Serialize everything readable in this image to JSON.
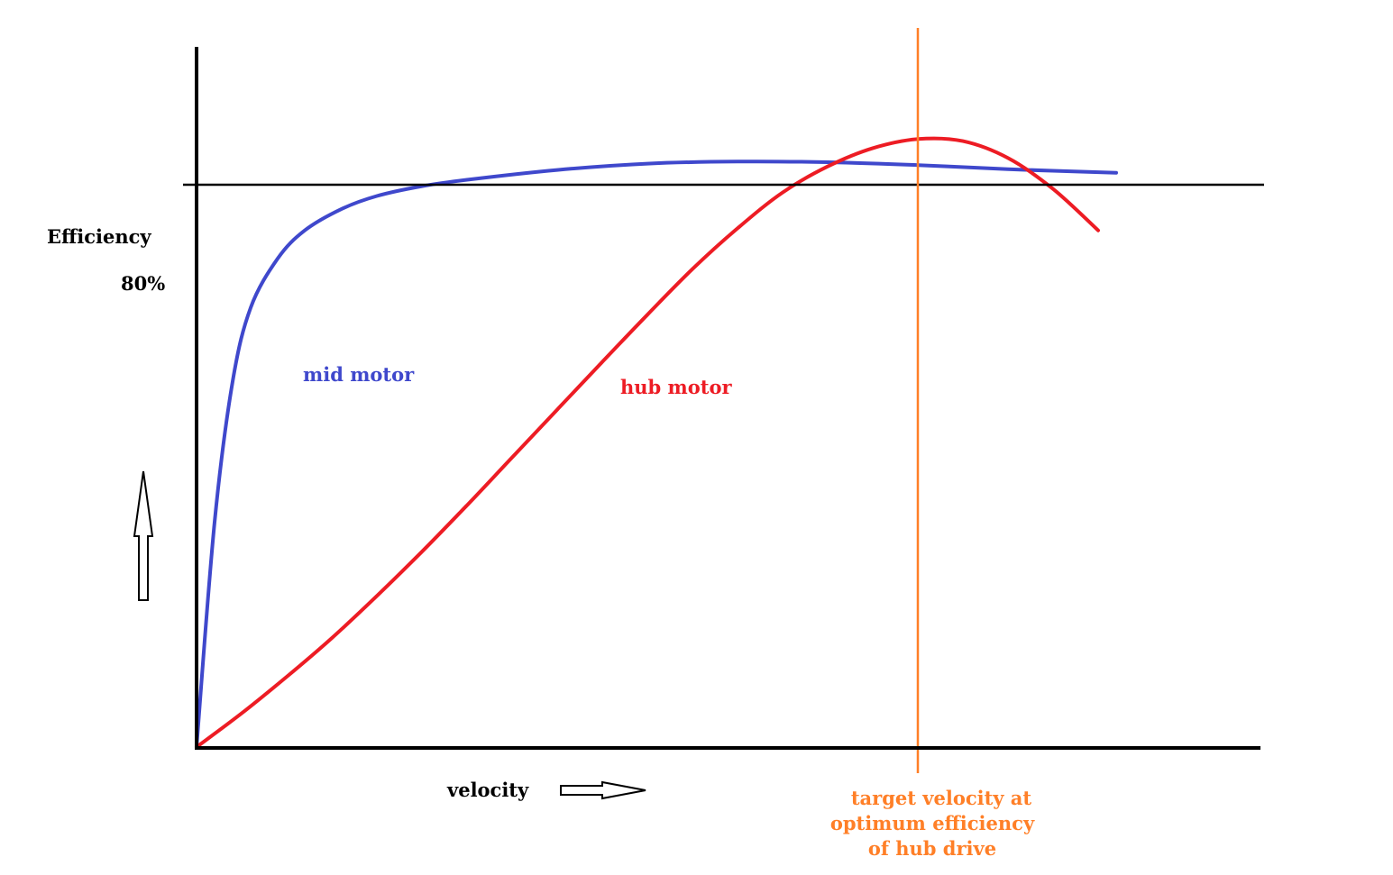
{
  "chart_data": {
    "type": "line",
    "ylabel": "Efficiency",
    "xlabel": "velocity",
    "reference_line": {
      "label": "80%",
      "y": 80
    },
    "target_marker": {
      "x": 8.0,
      "lines": [
        "target velocity at",
        "optimum efficiency",
        "of hub drive"
      ]
    },
    "grid": false,
    "xlim": [
      0,
      11.8
    ],
    "ylim": [
      0,
      100
    ],
    "series": [
      {
        "name": "mid motor",
        "color": "#3f48cc",
        "x": [
          0,
          0.2,
          0.4,
          0.6,
          0.9,
          1.2,
          1.6,
          2.0,
          2.5,
          3.0,
          4.0,
          5.0,
          6.0,
          7.0,
          8.0,
          9.0,
          10.2
        ],
        "y": [
          0,
          32,
          52,
          62.5,
          69.5,
          73.5,
          76.5,
          78.4,
          79.8,
          80.7,
          82.1,
          83.0,
          83.3,
          83.2,
          82.8,
          82.2,
          81.7
        ]
      },
      {
        "name": "hub motor",
        "color": "#ed1c24",
        "x": [
          0,
          0.5,
          1.0,
          1.5,
          2.0,
          2.5,
          3.0,
          3.5,
          4.0,
          4.5,
          5.0,
          5.5,
          6.0,
          6.5,
          7.0,
          7.5,
          8.0,
          8.5,
          9.0,
          9.5,
          10.0
        ],
        "y": [
          0,
          4.8,
          10.0,
          15.5,
          21.5,
          27.8,
          34.4,
          41.2,
          48.0,
          54.8,
          61.5,
          68.0,
          73.8,
          78.9,
          82.6,
          85.2,
          86.5,
          86.2,
          83.8,
          79.4,
          73.5
        ]
      }
    ]
  }
}
